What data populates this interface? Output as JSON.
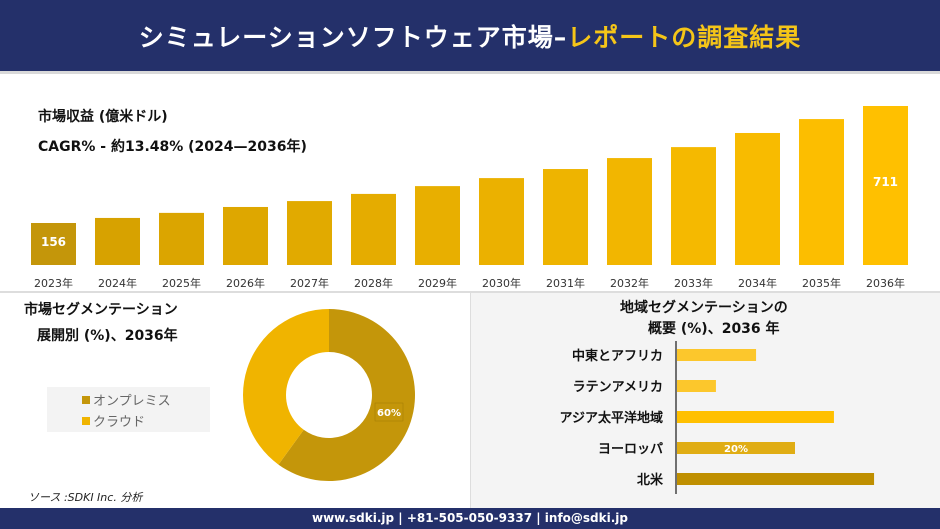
{
  "header": {
    "title_main": "シミュレーションソフトウェア市場–",
    "title_accent": "レポートの調査結果"
  },
  "revenue": {
    "label": "市場収益 (億米ドル)",
    "cagr": "CAGR% - 約13.48% (2024—2036年)"
  },
  "segment": {
    "title_line1": "市場セグメンテーション",
    "title_line2": "展開別 (%)、2036年"
  },
  "region": {
    "title_line1": "地域セグメンテーションの",
    "title_line2": "概要 (%)、2036 年"
  },
  "source": "ソース :SDKI Inc. 分析",
  "footer": "www.sdki.jp | +81-505-050-9337 | info@sdki.jp",
  "colors": {
    "navy": "#24306a",
    "accent": "#f5c518",
    "dark_gold": "#c4960a",
    "gold": "#f0b400"
  },
  "chart_data": [
    {
      "type": "bar",
      "title": "市場収益 (億米ドル)",
      "categories": [
        "2023年",
        "2024年",
        "2025年",
        "2026年",
        "2027年",
        "2028年",
        "2029年",
        "2030年",
        "2031年",
        "2032年",
        "2033年",
        "2034年",
        "2035年",
        "2036年"
      ],
      "values": [
        156,
        180,
        204,
        232,
        260,
        294,
        331,
        369,
        412,
        464,
        516,
        583,
        649,
        711
      ],
      "data_labels": {
        "0": "156",
        "13": "711"
      }
    },
    {
      "type": "pie",
      "subtype": "donut",
      "labels": [
        "オンプレミス",
        "クラウド"
      ],
      "values": [
        60,
        40
      ],
      "colors": [
        "#c4960a",
        "#f0b400"
      ],
      "data_labels": {
        "0": "60%"
      },
      "legend": "left"
    },
    {
      "type": "bar",
      "orientation": "horizontal",
      "categories": [
        "中東とアフリカ",
        "ラテンアメリカ",
        "アジア太平洋地域",
        "ヨーロッパ",
        "北米"
      ],
      "values": [
        13.4,
        6.6,
        26.6,
        20,
        33.4
      ],
      "colors": [
        "#fcc72c",
        "#fcc72c",
        "#ffc000",
        "#e0ad14",
        "#bf8f00"
      ],
      "data_labels": {
        "3": "20%"
      }
    }
  ]
}
